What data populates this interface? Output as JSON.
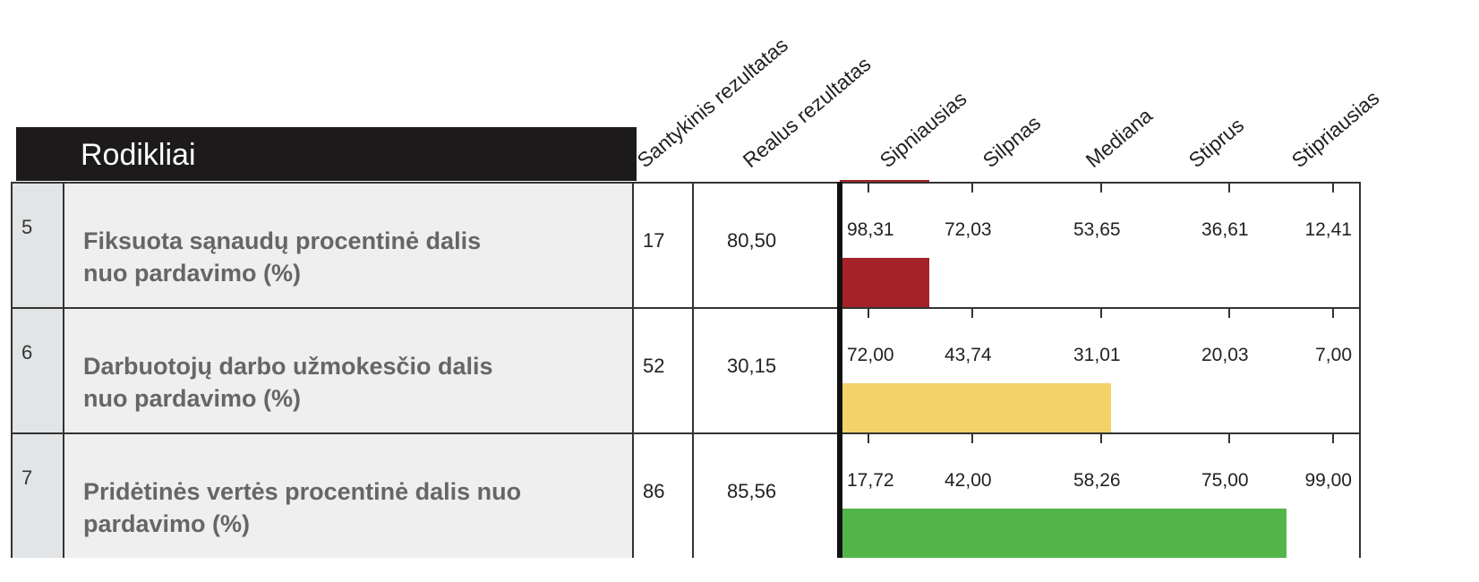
{
  "header": {
    "title": "Rodikliai",
    "columns": [
      "Santykinis rezultatas",
      "Realus rezultatas",
      "Sipniausias",
      "Silpnas",
      "Mediana",
      "Stiprus",
      "Stipriausias"
    ]
  },
  "rows": [
    {
      "number": "5",
      "name": [
        "Fiksuota sąnaudų procentinė dalis",
        "nuo pardavimo (%)"
      ],
      "relative": 17,
      "actual": "80,50",
      "thresholds": [
        "98,31",
        "72,03",
        "53,65",
        "36,61",
        "12,41"
      ],
      "color": "#a52328"
    },
    {
      "number": "6",
      "name": [
        "Darbuotojų darbo užmokesčio dalis",
        "nuo pardavimo (%)"
      ],
      "relative": 52,
      "actual": "30,15",
      "thresholds": [
        "72,00",
        "43,74",
        "31,01",
        "20,03",
        "7,00"
      ],
      "color": "#f1d36a"
    },
    {
      "number": "7",
      "name": [
        "Pridėtinės vertės procentinė dalis nuo",
        "pardavimo (%)"
      ],
      "relative": 86,
      "actual": "85,56",
      "thresholds": [
        "17,72",
        "42,00",
        "58,26",
        "75,00",
        "99,00"
      ],
      "color": "#52b54a"
    }
  ]
}
